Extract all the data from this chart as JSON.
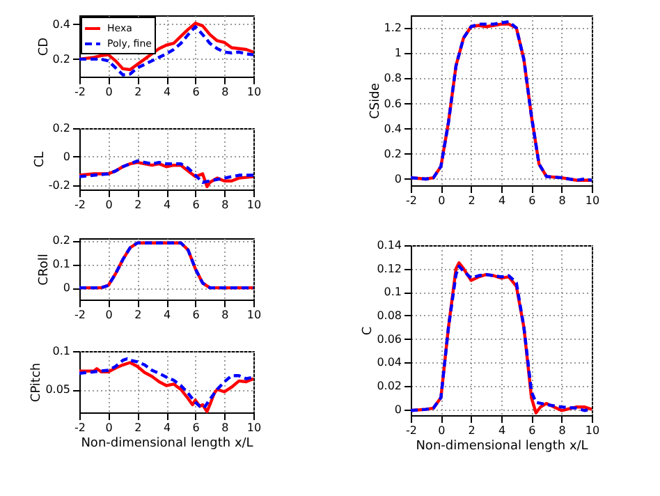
{
  "chart_data": [
    {
      "type": "line",
      "ylabel": "CD",
      "ylim": [
        0.1,
        0.45
      ],
      "yticks": [
        0.2,
        0.4
      ],
      "xlim": [
        -2,
        10
      ],
      "xticks": [
        -2,
        0,
        2,
        4,
        6,
        8,
        10
      ],
      "grid": true,
      "legend": "top left",
      "series": [
        {
          "name": "Hexa",
          "color": "#ff0000",
          "line_style": "solid",
          "x": [
            -2,
            -1,
            -0.5,
            0,
            0.5,
            1,
            1.5,
            2,
            2.5,
            3,
            3.5,
            4,
            4.5,
            5,
            5.5,
            6,
            6.5,
            7,
            7.5,
            8,
            8.5,
            9,
            9.5,
            10
          ],
          "values": [
            0.2,
            0.21,
            0.22,
            0.225,
            0.19,
            0.145,
            0.14,
            0.17,
            0.2,
            0.23,
            0.26,
            0.28,
            0.29,
            0.33,
            0.37,
            0.405,
            0.39,
            0.34,
            0.305,
            0.295,
            0.265,
            0.26,
            0.255,
            0.24
          ]
        },
        {
          "name": "Poly, fine",
          "color": "#0000ff",
          "line_style": "dashed",
          "x": [
            -2,
            -1,
            -0.5,
            0,
            0.5,
            1,
            1.5,
            2,
            2.5,
            3,
            3.5,
            4,
            4.5,
            5,
            5.5,
            6,
            6.5,
            7,
            7.5,
            8,
            8.5,
            9,
            9.5,
            10
          ],
          "values": [
            0.2,
            0.2,
            0.2,
            0.19,
            0.15,
            0.11,
            0.115,
            0.15,
            0.17,
            0.19,
            0.21,
            0.23,
            0.255,
            0.29,
            0.34,
            0.385,
            0.34,
            0.29,
            0.26,
            0.24,
            0.235,
            0.24,
            0.23,
            0.225
          ]
        }
      ]
    },
    {
      "type": "line",
      "ylabel": "CL",
      "ylim": [
        -0.23,
        0.2
      ],
      "yticks": [
        -0.2,
        0,
        0.2
      ],
      "xlim": [
        -2,
        10
      ],
      "xticks": [
        -2,
        0,
        2,
        4,
        6,
        8,
        10
      ],
      "grid": true,
      "series": [
        {
          "color": "#ff0000",
          "line_style": "solid",
          "x": [
            -2,
            -1,
            0,
            0.5,
            1,
            1.5,
            2,
            2.5,
            3,
            3.5,
            4,
            4.5,
            5,
            5.5,
            6,
            6.5,
            6.8,
            7,
            7.5,
            8,
            8.5,
            9,
            10
          ],
          "values": [
            -0.13,
            -0.12,
            -0.12,
            -0.1,
            -0.07,
            -0.05,
            -0.04,
            -0.05,
            -0.06,
            -0.05,
            -0.07,
            -0.06,
            -0.06,
            -0.1,
            -0.14,
            -0.12,
            -0.21,
            -0.18,
            -0.15,
            -0.17,
            -0.17,
            -0.15,
            -0.14
          ]
        },
        {
          "color": "#0000ff",
          "line_style": "dashed",
          "x": [
            -2,
            -1,
            0,
            0.5,
            1,
            1.5,
            2,
            2.5,
            3,
            3.5,
            4,
            4.5,
            5,
            5.5,
            6,
            6.5,
            7,
            7.5,
            8,
            8.5,
            9,
            10
          ],
          "values": [
            -0.14,
            -0.13,
            -0.12,
            -0.1,
            -0.07,
            -0.05,
            -0.03,
            -0.04,
            -0.05,
            -0.04,
            -0.05,
            -0.05,
            -0.05,
            -0.08,
            -0.13,
            -0.18,
            -0.17,
            -0.16,
            -0.15,
            -0.14,
            -0.13,
            -0.13
          ]
        }
      ]
    },
    {
      "type": "line",
      "ylabel": "CRoll",
      "ylim": [
        -0.05,
        0.21
      ],
      "yticks": [
        0,
        0.1,
        0.2
      ],
      "xlim": [
        -2,
        10
      ],
      "xticks": [
        -2,
        0,
        2,
        4,
        6,
        8,
        10
      ],
      "grid": true,
      "series": [
        {
          "color": "#ff0000",
          "line_style": "solid",
          "x": [
            -2,
            -0.5,
            0,
            0.5,
            1,
            1.5,
            2,
            3,
            4,
            5,
            5.5,
            6,
            6.5,
            7,
            10
          ],
          "values": [
            0,
            0,
            0.01,
            0.06,
            0.12,
            0.17,
            0.19,
            0.19,
            0.19,
            0.19,
            0.16,
            0.08,
            0.02,
            0,
            0
          ]
        },
        {
          "color": "#0000ff",
          "line_style": "dashed",
          "x": [
            -2,
            -0.5,
            0,
            0.5,
            1,
            1.5,
            2,
            3,
            4,
            5,
            5.5,
            6,
            6.5,
            7,
            10
          ],
          "values": [
            0,
            0,
            0.01,
            0.06,
            0.12,
            0.17,
            0.19,
            0.19,
            0.19,
            0.19,
            0.16,
            0.08,
            0.02,
            0,
            0
          ]
        }
      ]
    },
    {
      "type": "line",
      "ylabel": "CPitch",
      "xlabel": "Non-dimensional length x/L",
      "ylim": [
        0.02,
        0.1
      ],
      "yticks": [
        0.05,
        0.1
      ],
      "xlim": [
        -2,
        10
      ],
      "xticks": [
        -2,
        0,
        2,
        4,
        6,
        8,
        10
      ],
      "grid": true,
      "series": [
        {
          "color": "#ff0000",
          "line_style": "solid",
          "x": [
            -2,
            -1,
            -0.8,
            -0.5,
            0,
            0.5,
            1,
            1.5,
            2,
            2.5,
            3,
            3.5,
            4,
            4.5,
            5,
            5.5,
            5.8,
            6,
            6.3,
            6.5,
            6.8,
            7,
            7.3,
            7.5,
            8,
            8.5,
            9,
            9.5,
            10
          ],
          "values": [
            0.074,
            0.074,
            0.077,
            0.073,
            0.073,
            0.078,
            0.082,
            0.085,
            0.08,
            0.072,
            0.067,
            0.06,
            0.055,
            0.057,
            0.05,
            0.038,
            0.03,
            0.036,
            0.028,
            0.03,
            0.021,
            0.03,
            0.045,
            0.05,
            0.047,
            0.053,
            0.061,
            0.06,
            0.064
          ]
        },
        {
          "color": "#0000ff",
          "line_style": "dashed",
          "x": [
            -2,
            -1,
            -0.5,
            0,
            0.5,
            1,
            1.3,
            1.5,
            2,
            2.5,
            3,
            3.5,
            4,
            4.5,
            5,
            5.5,
            6,
            6.3,
            6.6,
            7,
            7.5,
            8,
            8.5,
            9,
            9.5,
            10
          ],
          "values": [
            0.071,
            0.073,
            0.074,
            0.075,
            0.08,
            0.088,
            0.09,
            0.088,
            0.086,
            0.082,
            0.075,
            0.071,
            0.066,
            0.062,
            0.055,
            0.045,
            0.033,
            0.028,
            0.026,
            0.037,
            0.05,
            0.06,
            0.068,
            0.068,
            0.064,
            0.066
          ]
        }
      ]
    },
    {
      "type": "line",
      "ylabel": "CSide",
      "ylim": [
        -0.05,
        1.3
      ],
      "yticks": [
        0,
        0.2,
        0.4,
        0.6,
        0.8,
        1,
        1.2
      ],
      "xlim": [
        -2,
        10
      ],
      "xticks": [
        -2,
        0,
        2,
        4,
        6,
        8,
        10
      ],
      "grid": true,
      "series": [
        {
          "color": "#ff0000",
          "line_style": "solid",
          "x": [
            -2,
            -1,
            -0.5,
            0,
            0.5,
            1,
            1.5,
            2,
            2.5,
            3,
            3.5,
            4,
            4.5,
            5,
            5.5,
            6,
            6.5,
            7,
            8,
            9,
            10
          ],
          "values": [
            0.01,
            0,
            0.01,
            0.1,
            0.45,
            0.9,
            1.12,
            1.21,
            1.22,
            1.21,
            1.22,
            1.23,
            1.23,
            1.2,
            0.95,
            0.5,
            0.12,
            0.02,
            0.01,
            -0.01,
            -0.01
          ]
        },
        {
          "color": "#0000ff",
          "line_style": "dashed",
          "x": [
            -2,
            -1,
            -0.5,
            0,
            0.5,
            1,
            1.5,
            2,
            2.5,
            3,
            3.5,
            4,
            4.5,
            5,
            5.5,
            6,
            6.5,
            7,
            8,
            9,
            9.5,
            10
          ],
          "values": [
            0.01,
            0,
            0.01,
            0.1,
            0.45,
            0.9,
            1.12,
            1.21,
            1.23,
            1.23,
            1.23,
            1.24,
            1.25,
            1.2,
            0.95,
            0.5,
            0.12,
            0.02,
            0.01,
            -0.01,
            0,
            -0.01
          ]
        }
      ]
    },
    {
      "type": "line",
      "ylabel": "C",
      "xlabel": "Non-dimensional length x/L",
      "ylim": [
        -0.005,
        0.14
      ],
      "yticks": [
        0,
        0.02,
        0.04,
        0.06,
        0.08,
        0.1,
        0.12,
        0.14
      ],
      "xlim": [
        -2,
        10
      ],
      "xticks": [
        -2,
        0,
        2,
        4,
        6,
        8,
        10
      ],
      "grid": true,
      "series": [
        {
          "color": "#ff0000",
          "line_style": "solid",
          "x": [
            -2,
            -1,
            -0.5,
            0,
            0.5,
            1,
            1.2,
            1.5,
            2,
            2.5,
            3,
            3.5,
            4,
            4.5,
            5,
            5.5,
            6,
            6.3,
            6.6,
            7,
            7.5,
            8,
            9,
            9.5,
            10
          ],
          "values": [
            -0.001,
            0,
            0.001,
            0.01,
            0.07,
            0.12,
            0.125,
            0.12,
            0.11,
            0.113,
            0.115,
            0.114,
            0.112,
            0.113,
            0.105,
            0.07,
            0.01,
            -0.003,
            0.002,
            0.005,
            0.002,
            -0.001,
            0.002,
            0.002,
            0
          ]
        },
        {
          "color": "#0000ff",
          "line_style": "dashed",
          "x": [
            -2,
            -1,
            -0.5,
            0,
            0.5,
            1,
            1.2,
            1.5,
            2,
            2.5,
            3,
            3.5,
            4,
            4.5,
            5,
            5.5,
            6,
            6.3,
            7,
            8,
            9,
            9.5,
            10
          ],
          "values": [
            -0.001,
            0,
            0.001,
            0.01,
            0.07,
            0.115,
            0.122,
            0.118,
            0.112,
            0.114,
            0.115,
            0.114,
            0.113,
            0.114,
            0.108,
            0.07,
            0.015,
            0.006,
            0.004,
            0.002,
            0.001,
            -0.001,
            0
          ]
        }
      ]
    }
  ]
}
